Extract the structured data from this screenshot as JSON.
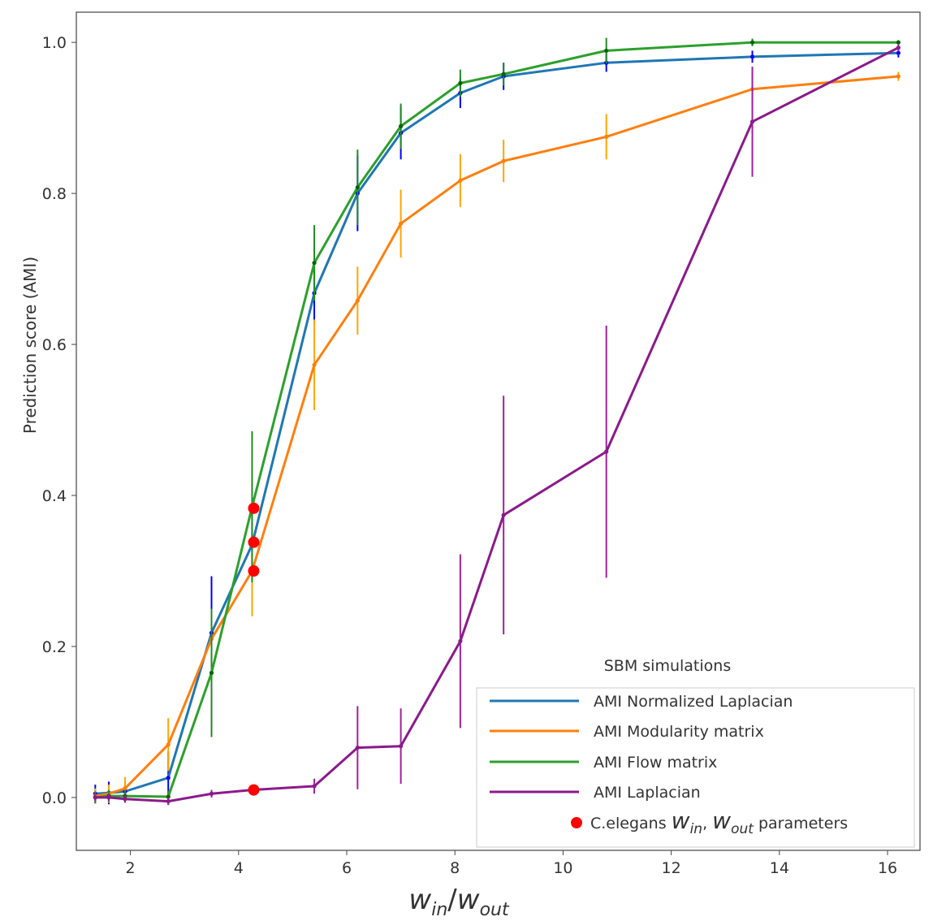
{
  "chart_data": {
    "type": "line",
    "title": "",
    "xlabel": "w_in/w_out",
    "xlabel_parts": {
      "base1": "w",
      "sub1": "in",
      "sep": "/",
      "base2": "w",
      "sub2": "out"
    },
    "ylabel": "Prediction score (AMI)",
    "xlim": [
      1.0,
      16.6
    ],
    "ylim": [
      -0.07,
      1.04
    ],
    "xticks": [
      2,
      4,
      6,
      8,
      10,
      12,
      14,
      16
    ],
    "yticks": [
      0.0,
      0.2,
      0.4,
      0.6,
      0.8,
      1.0
    ],
    "grid": false,
    "x": [
      1.35,
      1.6,
      1.9,
      2.7,
      3.5,
      4.25,
      5.4,
      6.2,
      7.0,
      8.1,
      8.9,
      10.8,
      13.5,
      16.2
    ],
    "series": [
      {
        "name": "AMI Normalized Laplacian",
        "color": "#1f77b4",
        "marker_color": "#0000ff",
        "err_color": "#0000ff",
        "values": [
          0.005,
          0.006,
          0.008,
          0.026,
          0.218,
          0.335,
          0.668,
          0.8,
          0.88,
          0.933,
          0.955,
          0.973,
          0.981,
          0.986
        ],
        "errors": [
          0.012,
          0.015,
          0.012,
          0.035,
          0.075,
          0.05,
          0.04,
          0.05,
          0.035,
          0.02,
          0.018,
          0.012,
          0.008,
          0.006
        ]
      },
      {
        "name": "AMI Modularity matrix",
        "color": "#ff7f0e",
        "marker_color": "#ff7f0e",
        "err_color": "#ffa500",
        "values": [
          0.002,
          0.005,
          0.012,
          0.07,
          0.21,
          0.3,
          0.573,
          0.658,
          0.76,
          0.817,
          0.843,
          0.875,
          0.938,
          0.955
        ],
        "errors": [
          0.01,
          0.012,
          0.015,
          0.035,
          0.04,
          0.06,
          0.06,
          0.045,
          0.045,
          0.035,
          0.028,
          0.03,
          0.025,
          0.006
        ]
      },
      {
        "name": "AMI Flow matrix",
        "color": "#2ca02c",
        "marker_color": "#006400",
        "err_color": "#228b22",
        "values": [
          0.0,
          0.002,
          0.002,
          0.001,
          0.165,
          0.385,
          0.708,
          0.808,
          0.889,
          0.946,
          0.958,
          0.989,
          1.0,
          1.0
        ],
        "errors": [
          0.008,
          0.008,
          0.008,
          0.008,
          0.085,
          0.1,
          0.05,
          0.05,
          0.03,
          0.018,
          0.015,
          0.017,
          0.005,
          0.003
        ]
      },
      {
        "name": "AMI Laplacian",
        "color": "#8b1a8b",
        "marker_color": "#8b1a8b",
        "err_color": "#a020a0",
        "values": [
          0.0,
          0.0,
          -0.002,
          -0.005,
          0.005,
          0.01,
          0.015,
          0.066,
          0.068,
          0.207,
          0.374,
          0.458,
          0.895,
          0.993
        ],
        "errors": [
          0.005,
          0.005,
          0.005,
          0.005,
          0.005,
          0.005,
          0.01,
          0.055,
          0.05,
          0.115,
          0.158,
          0.167,
          0.073,
          0.005
        ]
      }
    ],
    "points": {
      "name": "C.elegans w_in, w_out parameters",
      "color": "#ff0000",
      "x": [
        4.28,
        4.28,
        4.28,
        4.28
      ],
      "y": [
        0.383,
        0.338,
        0.3,
        0.01
      ]
    },
    "legend": {
      "title": "SBM simulations",
      "location": "lower-right",
      "entries": [
        "AMI Normalized Laplacian",
        "AMI Modularity matrix",
        "AMI Flow matrix",
        "AMI Laplacian"
      ],
      "point_entry": {
        "prefix": "C.elegans ",
        "w": "w",
        "sub_in": "in",
        "comma": ", ",
        "sub_out": "out",
        "suffix": " parameters"
      }
    }
  }
}
